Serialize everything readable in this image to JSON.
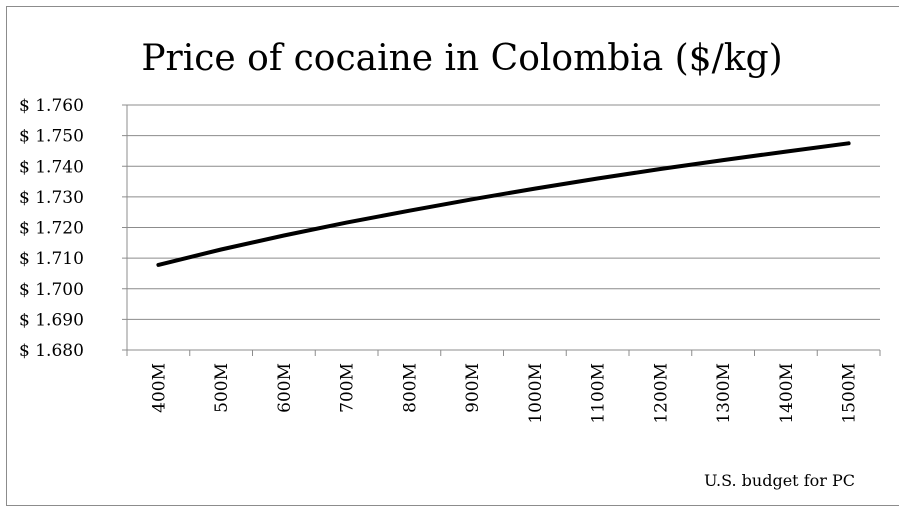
{
  "chart_data": {
    "type": "line",
    "title": "Price of cocaine in Colombia ($/kg)",
    "xlabel": "U.S. budget for PC",
    "ylabel": "",
    "categories": [
      "400M",
      "500M",
      "600M",
      "700M",
      "800M",
      "900M",
      "1000M",
      "1100M",
      "1200M",
      "1300M",
      "1400M",
      "1500M"
    ],
    "series": [
      {
        "values": [
          1.7078,
          1.7128,
          1.7174,
          1.7216,
          1.7255,
          1.7292,
          1.7327,
          1.736,
          1.7391,
          1.742,
          1.7448,
          1.7475
        ],
        "color": "#000000"
      }
    ],
    "y_ticks": [
      1.68,
      1.69,
      1.7,
      1.71,
      1.72,
      1.73,
      1.74,
      1.75,
      1.76
    ],
    "y_tick_labels": [
      "$ 1.680",
      "$ 1.690",
      "$ 1.700",
      "$ 1.710",
      "$ 1.720",
      "$ 1.730",
      "$ 1.740",
      "$ 1.750",
      "$ 1.760"
    ],
    "ylim": [
      1.68,
      1.76
    ],
    "grid": true,
    "legend": "none"
  }
}
